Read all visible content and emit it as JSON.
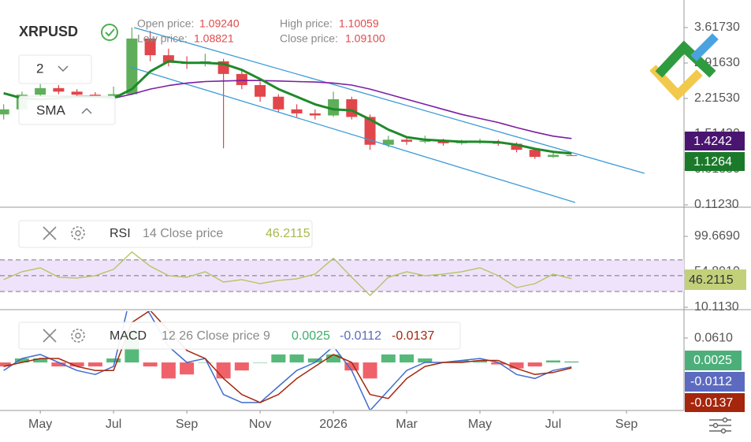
{
  "header": {
    "symbol": "XRPUSD",
    "ohlc": [
      {
        "label": "Open price:",
        "value": "1.09240"
      },
      {
        "label": "High price:",
        "value": "1.10059"
      },
      {
        "label": "Low price:",
        "value": "1.08821"
      },
      {
        "label": "Close price:",
        "value": "1.09100"
      }
    ]
  },
  "toolbar": {
    "interval": "2",
    "indicator": "SMA"
  },
  "chart_data": [
    {
      "type": "candlestick",
      "xlim": [
        2.9,
        21.57
      ],
      "xticks": [
        {
          "value": 4,
          "label": "May"
        },
        {
          "value": 6,
          "label": "Jul"
        },
        {
          "value": 8,
          "label": "Sep"
        },
        {
          "value": 10,
          "label": "Nov"
        },
        {
          "value": 12,
          "label": "2026"
        },
        {
          "value": 14,
          "label": "Mar"
        },
        {
          "value": 16,
          "label": "May"
        },
        {
          "value": 18,
          "label": "Jul"
        },
        {
          "value": 20,
          "label": "Sep"
        }
      ],
      "ylim": [
        0.081,
        4.162
      ],
      "yticks": [
        {
          "value": 3.6173,
          "label": "3.61730"
        },
        {
          "value": 2.9163,
          "label": "2.91630"
        },
        {
          "value": 2.2153,
          "label": "2.21530"
        },
        {
          "value": 1.5143,
          "label": "1.51430"
        },
        {
          "value": 0.8133,
          "label": "0.81330"
        },
        {
          "value": 0.1123,
          "label": "0.11230"
        }
      ],
      "up_color": "#5fae5a",
      "down_color": "#e0464b",
      "x": [
        3.0,
        3.5,
        4.0,
        4.5,
        5.0,
        5.5,
        6.0,
        6.5,
        7.0,
        7.5,
        8.0,
        8.5,
        9.0,
        9.5,
        10.0,
        10.5,
        11.0,
        11.5,
        12.0,
        12.5,
        13.0,
        13.5,
        14.0,
        14.5,
        15.0,
        15.5,
        16.0,
        16.5,
        17.0,
        17.5,
        18.0,
        18.5
      ],
      "candles": [
        [
          1.9,
          2.1,
          1.8,
          2.0
        ],
        [
          2.0,
          2.35,
          1.95,
          2.29
        ],
        [
          2.29,
          2.5,
          2.25,
          2.42
        ],
        [
          2.42,
          2.48,
          2.3,
          2.35
        ],
        [
          2.35,
          2.4,
          2.22,
          2.29
        ],
        [
          2.29,
          2.34,
          2.18,
          2.25
        ],
        [
          2.25,
          2.45,
          2.2,
          2.3
        ],
        [
          2.3,
          3.62,
          2.28,
          3.4
        ],
        [
          3.4,
          3.55,
          2.95,
          3.07
        ],
        [
          3.07,
          3.2,
          2.85,
          2.92
        ],
        [
          2.92,
          3.05,
          2.8,
          2.9
        ],
        [
          2.9,
          3.1,
          2.85,
          2.95
        ],
        [
          2.95,
          3.0,
          1.23,
          2.7
        ],
        [
          2.7,
          2.8,
          2.4,
          2.48
        ],
        [
          2.48,
          2.55,
          2.15,
          2.25
        ],
        [
          2.25,
          2.3,
          1.95,
          2.0
        ],
        [
          2.0,
          2.1,
          1.85,
          1.92
        ],
        [
          1.92,
          2.0,
          1.8,
          1.88
        ],
        [
          1.88,
          2.35,
          1.85,
          2.2
        ],
        [
          2.2,
          2.25,
          1.8,
          1.85
        ],
        [
          1.85,
          1.9,
          1.2,
          1.3
        ],
        [
          1.3,
          1.48,
          1.25,
          1.4
        ],
        [
          1.4,
          1.45,
          1.3,
          1.36
        ],
        [
          1.36,
          1.48,
          1.33,
          1.38
        ],
        [
          1.38,
          1.42,
          1.28,
          1.33
        ],
        [
          1.33,
          1.4,
          1.3,
          1.35
        ],
        [
          1.35,
          1.42,
          1.32,
          1.36
        ],
        [
          1.36,
          1.4,
          1.28,
          1.32
        ],
        [
          1.32,
          1.35,
          1.15,
          1.2
        ],
        [
          1.2,
          1.22,
          1.02,
          1.06
        ],
        [
          1.06,
          1.14,
          1.04,
          1.1
        ],
        [
          1.0924,
          1.10059,
          1.08821,
          1.091
        ]
      ],
      "series": [
        {
          "color": "#7b1fa2",
          "width": 1.6,
          "values": [
            null,
            null,
            null,
            null,
            null,
            null,
            2.22,
            2.3,
            2.4,
            2.47,
            2.52,
            2.55,
            2.56,
            2.57,
            2.57,
            2.56,
            2.55,
            2.54,
            2.52,
            2.48,
            2.4,
            2.3,
            2.2,
            2.1,
            2.0,
            1.9,
            1.82,
            1.74,
            1.64,
            1.55,
            1.47,
            1.4242
          ]
        },
        {
          "color": "#1e8a2a",
          "width": 3,
          "values": [
            2.32,
            2.22,
            2.2,
            2.22,
            2.25,
            2.25,
            2.22,
            2.4,
            2.75,
            2.95,
            2.92,
            2.92,
            2.9,
            2.78,
            2.6,
            2.4,
            2.25,
            2.1,
            2.0,
            1.98,
            1.8,
            1.6,
            1.45,
            1.4,
            1.38,
            1.36,
            1.36,
            1.35,
            1.3,
            1.22,
            1.16,
            1.1264
          ]
        }
      ],
      "channel": {
        "color": "#3d9bd6",
        "lines": [
          {
            "x": [
              6.56,
              20.49
            ],
            "values": [
              3.617,
              0.735
            ]
          },
          {
            "x": [
              6.45,
              18.6
            ],
            "values": [
              2.838,
              0.159
            ]
          }
        ]
      }
    },
    {
      "type": "line",
      "title": "RSI",
      "subtitle": "14 Close price",
      "ylim": [
        8.12,
        134.5
      ],
      "yticks": [
        {
          "value": 99.669,
          "label": "99.6690"
        },
        {
          "value": 54.891,
          "label": "54.8910"
        },
        {
          "value": 10.113,
          "label": "10.1130"
        }
      ],
      "levels": [
        70,
        50,
        30
      ],
      "band_color": "#efe3fb",
      "x": [
        3.0,
        3.5,
        4.0,
        4.5,
        5.0,
        5.5,
        6.0,
        6.5,
        7.0,
        7.5,
        8.0,
        8.5,
        9.0,
        9.5,
        10.0,
        10.5,
        11.0,
        11.5,
        12.0,
        12.5,
        13.0,
        13.5,
        14.0,
        14.5,
        15.0,
        15.5,
        16.0,
        16.5,
        17.0,
        17.5,
        18.0,
        18.5
      ],
      "series": [
        {
          "color": "#b5c464",
          "width": 1.4,
          "values": [
            45,
            55,
            60,
            48,
            47,
            50,
            58,
            80,
            62,
            50,
            48,
            55,
            42,
            45,
            40,
            44,
            46,
            52,
            72,
            48,
            25,
            48,
            55,
            50,
            52,
            55,
            60,
            50,
            35,
            40,
            52,
            46.2115
          ]
        }
      ]
    },
    {
      "type": "macd",
      "title": "MACD",
      "subtitle": "12 26 Close price 9",
      "ylim": [
        -0.118,
        0.128
      ],
      "yticks": [
        {
          "value": 0.061,
          "label": "0.0610"
        }
      ],
      "x": [
        3.0,
        3.5,
        4.0,
        4.5,
        5.0,
        5.5,
        6.0,
        6.5,
        7.0,
        7.5,
        8.0,
        8.5,
        9.0,
        9.5,
        10.0,
        10.5,
        11.0,
        11.5,
        12.0,
        12.5,
        13.0,
        13.5,
        14.0,
        14.5,
        15.0,
        15.5,
        16.0,
        16.5,
        17.0,
        17.5,
        18.0,
        18.5
      ],
      "histogram": {
        "colors": [
          "#56b979",
          "#f0626a"
        ],
        "values": [
          -0.01,
          0.01,
          0.01,
          -0.01,
          -0.01,
          -0.01,
          0.01,
          0.08,
          -0.01,
          -0.04,
          -0.03,
          0.0,
          -0.04,
          -0.02,
          0.0,
          0.02,
          0.02,
          0.01,
          0.02,
          -0.02,
          -0.04,
          0.02,
          0.02,
          0.01,
          0.0,
          0.005,
          0.005,
          -0.005,
          -0.015,
          -0.01,
          0.005,
          0.0025
        ]
      },
      "series": [
        {
          "color": "#3f6ccf",
          "width": 1.5,
          "values": [
            -0.02,
            0.01,
            0.02,
            0.0,
            -0.02,
            -0.03,
            -0.01,
            0.18,
            0.12,
            0.04,
            0.0,
            0.01,
            -0.08,
            -0.1,
            -0.1,
            -0.06,
            -0.02,
            0.0,
            0.04,
            -0.02,
            -0.12,
            -0.07,
            -0.02,
            0.0,
            0.0,
            0.005,
            0.01,
            0.0,
            -0.03,
            -0.04,
            -0.02,
            -0.0112
          ]
        },
        {
          "color": "#a5260c",
          "width": 1.5,
          "values": [
            -0.01,
            0.0,
            0.01,
            0.01,
            -0.01,
            -0.02,
            -0.02,
            0.1,
            0.13,
            0.08,
            0.03,
            0.01,
            -0.04,
            -0.08,
            -0.1,
            -0.08,
            -0.04,
            -0.01,
            0.02,
            0.0,
            -0.08,
            -0.09,
            -0.04,
            -0.01,
            0.0,
            0.0,
            0.005,
            0.005,
            -0.015,
            -0.03,
            -0.025,
            -0.0137
          ]
        }
      ]
    }
  ]
}
